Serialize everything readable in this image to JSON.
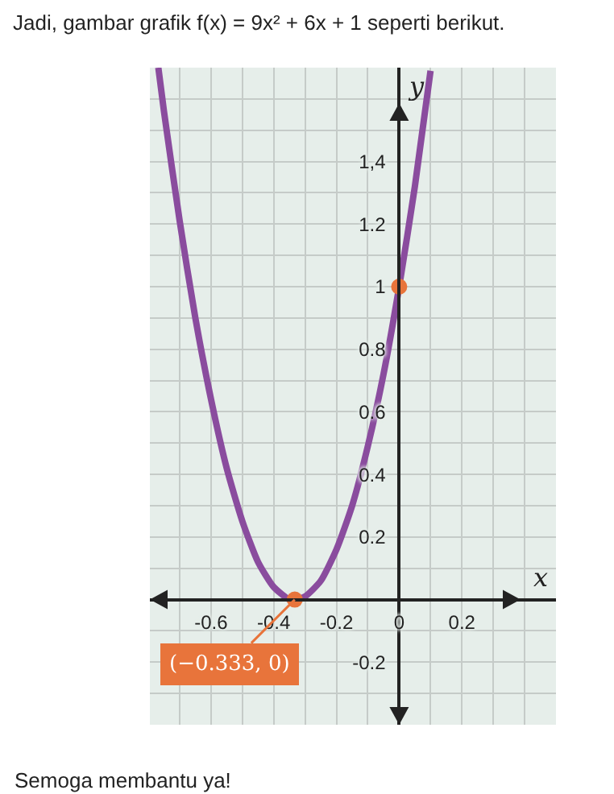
{
  "chart_data": {
    "type": "line",
    "title": "Jadi, gambar grafik f(x) = 9x² + 6x + 1 seperti berikut.",
    "xlabel": "x",
    "ylabel": "y",
    "x": [
      -0.768,
      -0.75,
      -0.7,
      -0.65,
      -0.6,
      -0.55,
      -0.5,
      -0.45,
      -0.4,
      -0.35,
      -0.333,
      -0.3,
      -0.25,
      -0.2,
      -0.15,
      -0.1,
      -0.05,
      0,
      0.05,
      0.1
    ],
    "series": [
      {
        "type": "line",
        "color": "#8a4c9e",
        "marker": "none",
        "values": [
          1.7,
          1.56,
          1.21,
          0.9,
          0.64,
          0.42,
          0.25,
          0.12,
          0.04,
          0.0,
          0,
          0.01,
          0.06,
          0.16,
          0.3,
          0.49,
          0.72,
          1,
          1.32,
          1.69
        ]
      },
      {
        "type": "scatter",
        "color": "#e8743b",
        "marker": "circle",
        "x": [
          -0.333,
          0
        ],
        "values": [
          0,
          1
        ]
      }
    ],
    "annotations": [
      {
        "text": "(−0.333, 0)",
        "x": -0.333,
        "y": 0
      },
      "Semoga membantu ya!"
    ],
    "xlim": [
      -0.795,
      0.5
    ],
    "ylim": [
      -0.4,
      1.7
    ],
    "xticks": [
      {
        "value": -0.7,
        "label": null
      },
      -0.6,
      {
        "value": -0.5,
        "label": null
      },
      -0.4,
      {
        "value": -0.3,
        "label": null
      },
      -0.2,
      {
        "value": -0.1,
        "label": null
      },
      0,
      {
        "value": 0.1,
        "label": null
      },
      0.2,
      {
        "value": 0.3,
        "label": null
      },
      {
        "value": 0.4,
        "label": null
      }
    ],
    "yticks": [
      {
        "value": -0.3,
        "label": null
      },
      -0.2,
      {
        "value": -0.1,
        "label": null
      },
      {
        "value": 0,
        "label": null
      },
      {
        "value": 0.1,
        "label": null
      },
      0.2,
      {
        "value": 0.3,
        "label": null
      },
      0.4,
      {
        "value": 0.5,
        "label": null
      },
      0.6,
      {
        "value": 0.7,
        "label": null
      },
      0.8,
      {
        "value": 0.9,
        "label": null
      },
      1,
      {
        "value": 1.1,
        "label": null
      },
      1.2,
      {
        "value": 1.3,
        "label": null
      },
      {
        "value": 1.4,
        "label": "1,4"
      },
      {
        "value": 1.5,
        "label": null
      },
      {
        "value": 1.6,
        "label": null
      }
    ],
    "grid": true,
    "line_style": "solid",
    "legend": false
  }
}
